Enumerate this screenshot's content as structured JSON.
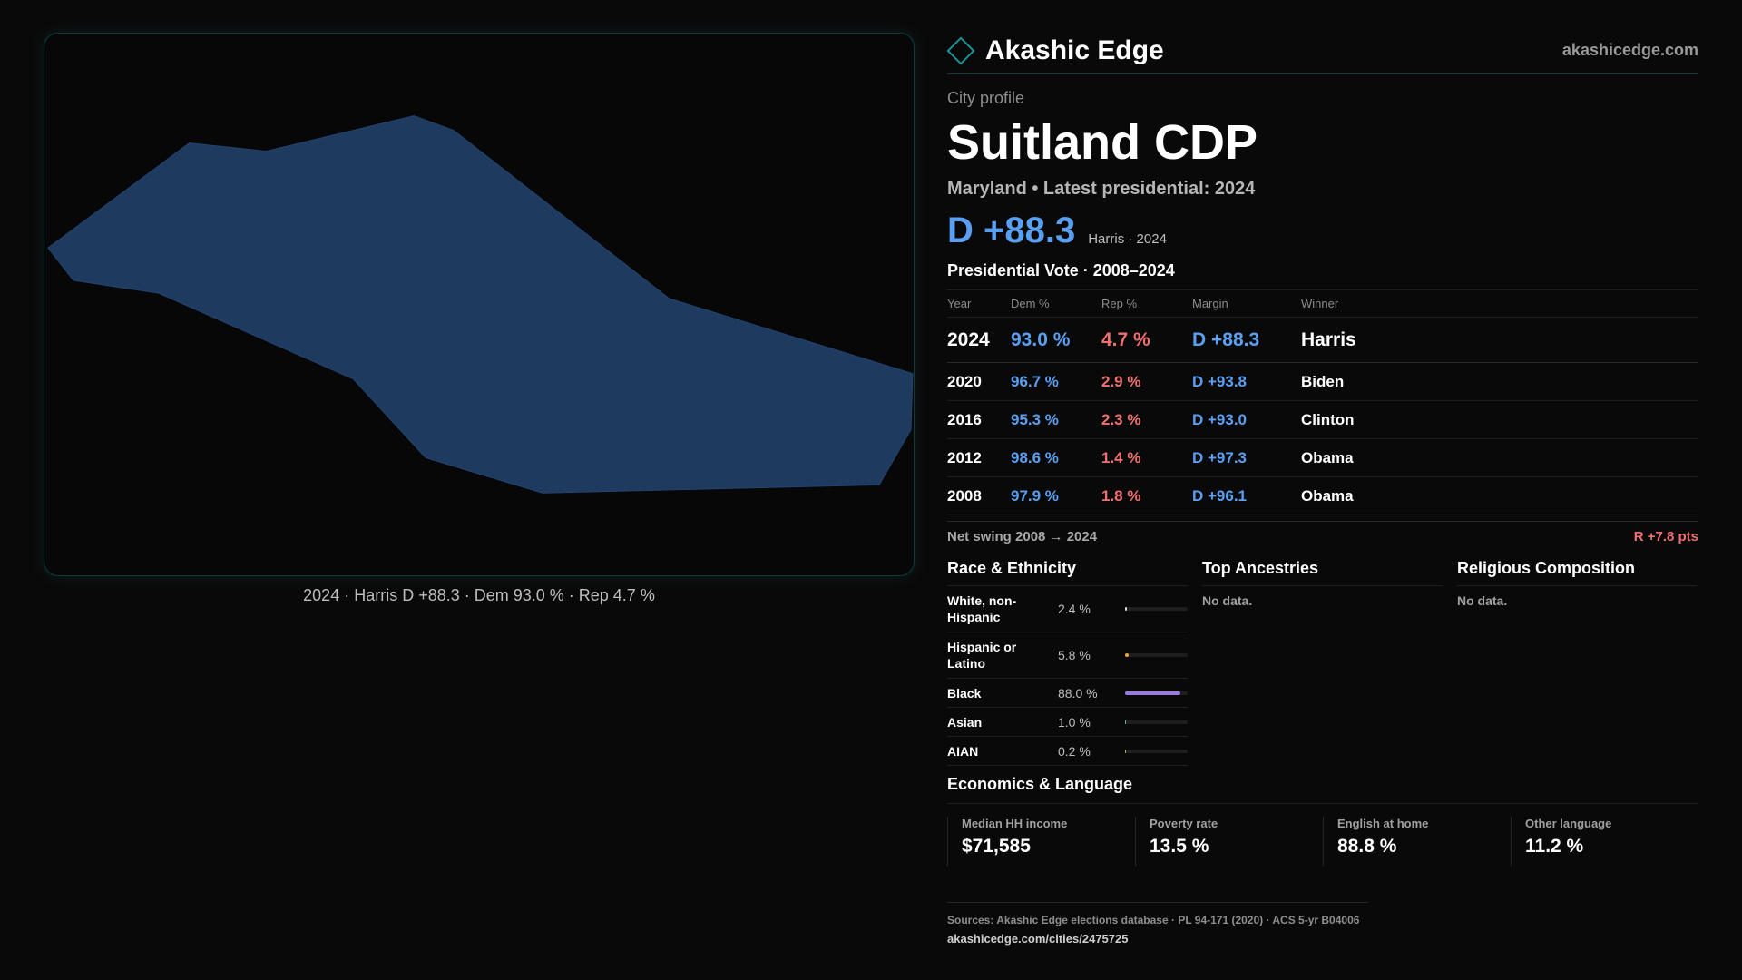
{
  "map": {
    "caption": "2024 · Harris D +88.3 · Dem 93.0 % · Rep 4.7 %",
    "fill_color": "#1e3a5f"
  },
  "brand": {
    "name": "Akashic Edge",
    "url": "akashicedge.com",
    "icon": "diamond-icon",
    "accent": "#1c8f95"
  },
  "profile": {
    "eyebrow": "City profile",
    "title": "Suitland CDP",
    "subtitle": "Maryland • Latest presidential: 2024",
    "headline_margin": "D +88.3",
    "headline_note": "Harris · 2024"
  },
  "vote": {
    "title": "Presidential Vote · 2008–2024",
    "headers": {
      "year": "Year",
      "dem": "Dem %",
      "rep": "Rep %",
      "margin": "Margin",
      "winner": "Winner"
    },
    "rows": [
      {
        "year": "2024",
        "dem": "93.0 %",
        "rep": "4.7 %",
        "margin": "D +88.3",
        "winner": "Harris"
      },
      {
        "year": "2020",
        "dem": "96.7 %",
        "rep": "2.9 %",
        "margin": "D +93.8",
        "winner": "Biden"
      },
      {
        "year": "2016",
        "dem": "95.3 %",
        "rep": "2.3 %",
        "margin": "D +93.0",
        "winner": "Clinton"
      },
      {
        "year": "2012",
        "dem": "98.6 %",
        "rep": "1.4 %",
        "margin": "D +97.3",
        "winner": "Obama"
      },
      {
        "year": "2008",
        "dem": "97.9 %",
        "rep": "1.8 %",
        "margin": "D +96.1",
        "winner": "Obama"
      }
    ],
    "swing_label": "Net swing 2008 → 2024",
    "swing_value": "R +7.8 pts",
    "dem_color": "#5aa0f2",
    "rep_color": "#f07070"
  },
  "race": {
    "title": "Race & Ethnicity",
    "rows": [
      {
        "label": "White, non-Hispanic",
        "value": "2.4 %",
        "fraction": 0.024,
        "color": "#d9d9d9"
      },
      {
        "label": "Hispanic or Latino",
        "value": "5.8 %",
        "fraction": 0.058,
        "color": "#e8a33a"
      },
      {
        "label": "Black",
        "value": "88.0 %",
        "fraction": 0.88,
        "color": "#9b7be0"
      },
      {
        "label": "Asian",
        "value": "1.0 %",
        "fraction": 0.01,
        "color": "#4fc3b0"
      },
      {
        "label": "AIAN",
        "value": "0.2 %",
        "fraction": 0.002,
        "color": "#c9a96b"
      }
    ]
  },
  "ancestries": {
    "title": "Top Ancestries",
    "empty": "No data."
  },
  "religion": {
    "title": "Religious Composition",
    "empty": "No data."
  },
  "economics": {
    "title": "Economics & Language",
    "cells": [
      {
        "label": "Median HH income",
        "value": "$71,585"
      },
      {
        "label": "Poverty rate",
        "value": "13.5 %"
      },
      {
        "label": "English at home",
        "value": "88.8 %"
      },
      {
        "label": "Other language",
        "value": "11.2 %"
      }
    ]
  },
  "sources": {
    "text": "Sources: Akashic Edge elections database · PL 94-171 (2020) · ACS 5-yr B04006",
    "link": "akashicedge.com/cities/2475725"
  }
}
